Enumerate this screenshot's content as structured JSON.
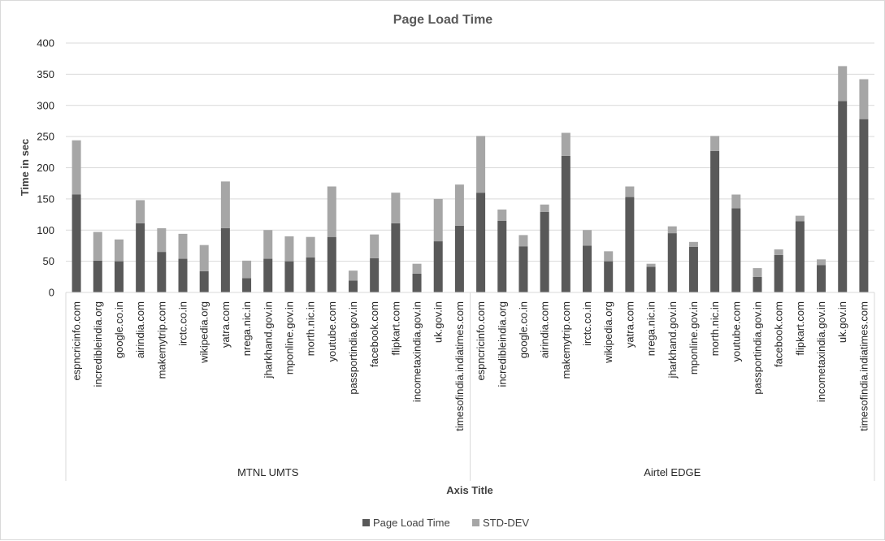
{
  "chart_data": {
    "type": "bar",
    "stacked": true,
    "title": "Page Load Time",
    "ylabel": "Time in sec",
    "xlabel": "Axis Title",
    "ylim": [
      0,
      400
    ],
    "yticks": [
      0,
      50,
      100,
      150,
      200,
      250,
      300,
      350,
      400
    ],
    "grid": true,
    "legend_position": "bottom",
    "colors": {
      "Page Load Time": "#595959",
      "STD-DEV": "#a6a6a6",
      "grid": "#d9d9d9"
    },
    "groups": [
      {
        "name": "MTNL UMTS",
        "categories": [
          "espncricinfo.com",
          "incredibleindia.org",
          "google.co.in",
          "airindia.com",
          "makemytrip.com",
          "irctc.co.in",
          "wikipedia.org",
          "yatra.com",
          "nrega.nic.in",
          "jharkhand.gov.in",
          "mponline.gov.in",
          "morth.nic.in",
          "youtube.com",
          "passportindia.gov.in",
          "facebook.com",
          "flipkart.com",
          "incometaxindia.gov.in",
          "uk.gov.in",
          "timesofindia.indiatimes.com"
        ],
        "series": [
          {
            "name": "Page Load Time",
            "values": [
              157,
              51,
              50,
              111,
              65,
              54,
              34,
              103,
              23,
              54,
              50,
              56,
              89,
              19,
              55,
              111,
              30,
              82,
              107
            ]
          },
          {
            "name": "STD-DEV",
            "values": [
              87,
              46,
              35,
              37,
              38,
              40,
              42,
              75,
              28,
              46,
              40,
              33,
              81,
              16,
              38,
              49,
              16,
              68,
              66
            ]
          }
        ]
      },
      {
        "name": "Airtel EDGE",
        "categories": [
          "espncricinfo.com",
          "incredibleindia.org",
          "google.co.in",
          "airindia.com",
          "makemytrip.com",
          "irctc.co.in",
          "wikipedia.org",
          "yatra.com",
          "nrega.nic.in",
          "jharkhand.gov.in",
          "mponline.gov.in",
          "morth.nic.in",
          "youtube.com",
          "passportindia.gov.in",
          "facebook.com",
          "flipkart.com",
          "incometaxindia.gov.in",
          "uk.gov.in",
          "timesofindia.indiatimes.com"
        ],
        "series": [
          {
            "name": "Page Load Time",
            "values": [
              160,
              115,
              74,
              129,
              219,
              75,
              50,
              153,
              41,
              95,
              73,
              227,
              135,
              25,
              60,
              114,
              44,
              307,
              278
            ]
          },
          {
            "name": "STD-DEV",
            "values": [
              91,
              18,
              18,
              12,
              37,
              25,
              16,
              17,
              5,
              11,
              8,
              24,
              22,
              14,
              9,
              9,
              9,
              56,
              64
            ]
          }
        ]
      }
    ]
  }
}
